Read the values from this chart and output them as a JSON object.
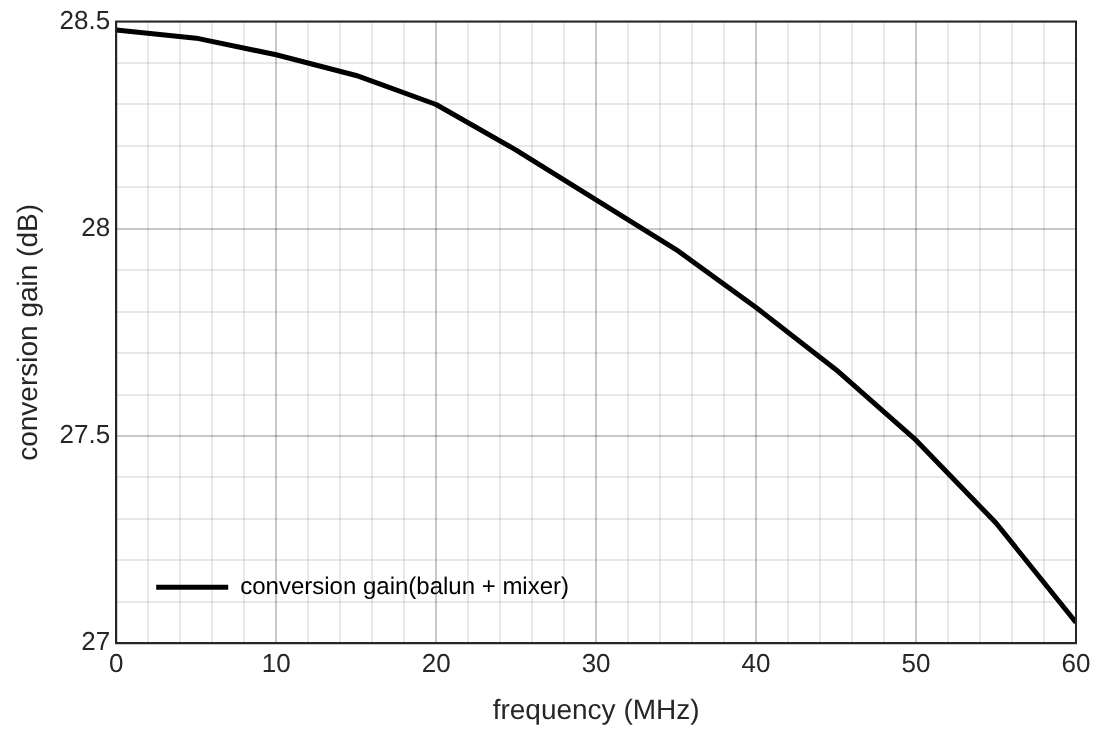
{
  "chart_data": {
    "type": "line",
    "xlabel": "frequency (MHz)",
    "ylabel": "conversion gain (dB)",
    "x": [
      0,
      5,
      10,
      15,
      20,
      25,
      30,
      35,
      40,
      45,
      50,
      55,
      60
    ],
    "series": [
      {
        "name": "conversion gain(balun + mixer)",
        "color": "#000000",
        "values": [
          28.48,
          28.46,
          28.42,
          28.37,
          28.3,
          28.19,
          28.07,
          27.95,
          27.81,
          27.66,
          27.49,
          27.29,
          27.05
        ]
      }
    ],
    "xlim": [
      0,
      60
    ],
    "ylim": [
      27,
      28.5
    ],
    "xticks": [
      0,
      {
        "value": 2,
        "label": null
      },
      {
        "value": 4,
        "label": null
      },
      {
        "value": 6,
        "label": null
      },
      {
        "value": 8,
        "label": null
      },
      10,
      {
        "value": 12,
        "label": null
      },
      {
        "value": 14,
        "label": null
      },
      {
        "value": 16,
        "label": null
      },
      {
        "value": 18,
        "label": null
      },
      20,
      {
        "value": 22,
        "label": null
      },
      {
        "value": 24,
        "label": null
      },
      {
        "value": 26,
        "label": null
      },
      {
        "value": 28,
        "label": null
      },
      30,
      {
        "value": 32,
        "label": null
      },
      {
        "value": 34,
        "label": null
      },
      {
        "value": 36,
        "label": null
      },
      {
        "value": 38,
        "label": null
      },
      40,
      {
        "value": 42,
        "label": null
      },
      {
        "value": 44,
        "label": null
      },
      {
        "value": 46,
        "label": null
      },
      {
        "value": 48,
        "label": null
      },
      50,
      {
        "value": 52,
        "label": null
      },
      {
        "value": 54,
        "label": null
      },
      {
        "value": 56,
        "label": null
      },
      {
        "value": 58,
        "label": null
      },
      60
    ],
    "yticks": [
      27,
      {
        "value": 27.1,
        "label": null
      },
      {
        "value": 27.2,
        "label": null
      },
      {
        "value": 27.3,
        "label": null
      },
      {
        "value": 27.4,
        "label": null
      },
      27.5,
      {
        "value": 27.6,
        "label": null
      },
      {
        "value": 27.7,
        "label": null
      },
      {
        "value": 27.8,
        "label": null
      },
      {
        "value": 27.9,
        "label": null
      },
      28,
      {
        "value": 28.1,
        "label": null
      },
      {
        "value": 28.2,
        "label": null
      },
      {
        "value": 28.3,
        "label": null
      },
      {
        "value": 28.4,
        "label": null
      },
      28.5
    ],
    "grid": true,
    "legend": "bottom left",
    "marker": "none",
    "line_style": "solid"
  }
}
